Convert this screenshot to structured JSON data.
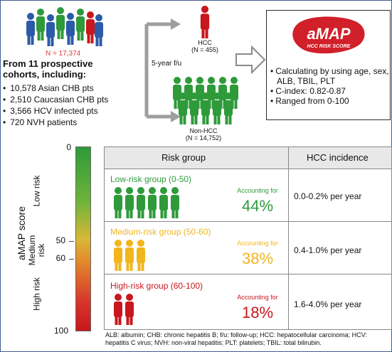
{
  "colors": {
    "blue": "#2b5aa8",
    "green": "#2e9a3a",
    "red": "#c8171d",
    "yellow": "#f2b51c",
    "arrow_gray": "#9e9e9e"
  },
  "cohort": {
    "total_label": "N = 17,374",
    "title": "From 11 prospective cohorts, including:",
    "items": [
      "10,578 Asian CHB pts",
      "2,510 Caucasian CHB pts",
      "3,566 HCV infected pts",
      "720 NVH patients"
    ]
  },
  "followup_label": "5-year f/u",
  "hcc": {
    "label": "HCC",
    "n": "(N = 455)"
  },
  "nonhcc": {
    "label": "Non-HCC",
    "n": "(N = 14,752)"
  },
  "amap": {
    "logo_text": "aMAP",
    "logo_subtext": "HCC RISK SCORE",
    "bullets": [
      "Calculating by using age, sex, ALB, TBIL, PLT",
      "C-index: 0.82-0.87",
      "Ranged from 0-100"
    ]
  },
  "scale": {
    "axis_title": "aMAP score",
    "ticks": [
      "0",
      "50",
      "60",
      "100"
    ],
    "low_label": "Low risk",
    "medium_label": "Medium risk",
    "high_label": "High risk"
  },
  "table": {
    "col_risk": "Risk group",
    "col_incidence": "HCC incidence",
    "rows": [
      {
        "title": "Low-risk group (0-50)",
        "accounting": "Accounting for",
        "percent": "44%",
        "incidence": "0.0-0.2% per year",
        "color": "#2e9a3a"
      },
      {
        "title": "Medium-risk group (50-60)",
        "accounting": "Accounting for",
        "percent": "38%",
        "incidence": "0.4-1.0% per year",
        "color": "#f2b51c"
      },
      {
        "title": "High-risk group (60-100)",
        "accounting": "Accounting for",
        "percent": "18%",
        "incidence": "1.6-4.0% per year",
        "color": "#c8171d"
      }
    ]
  },
  "footnote": "ALB: albumin; CHB: chronic hepatitis B; f/u: follow-up; HCC: hepatocellular carcinoma; HCV: hepatitis C virus; NVH: non-viral hepatitis; PLT: platelets; TBIL: total bilirubin."
}
